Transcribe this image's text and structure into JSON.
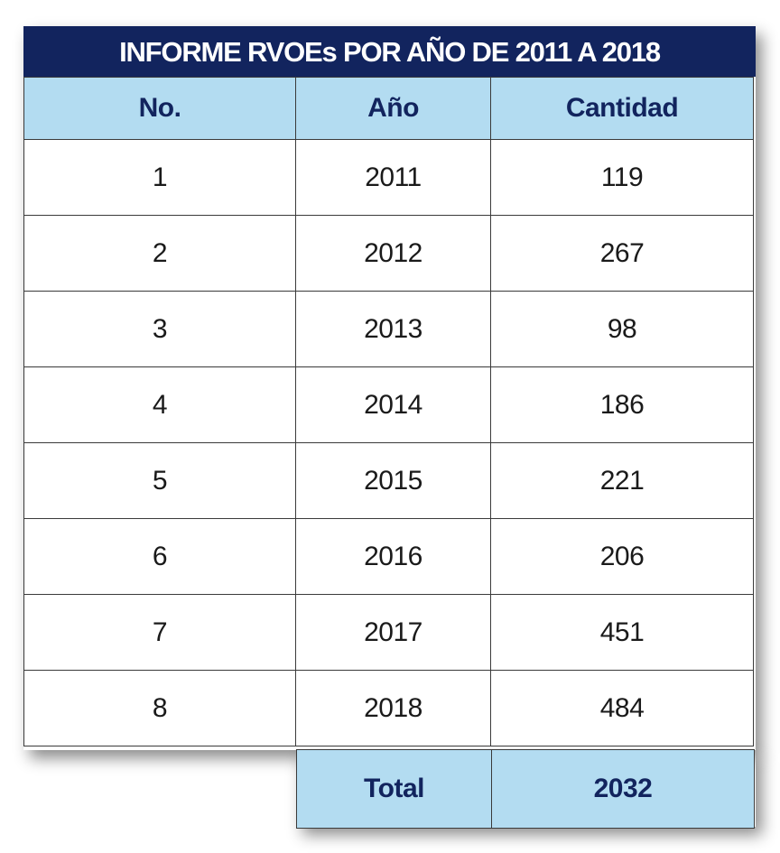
{
  "title": "INFORME RVOEs POR AÑO DE 2011 A 2018",
  "headers": {
    "no": "No.",
    "year": "Año",
    "quantity": "Cantidad"
  },
  "rows": [
    {
      "no": "1",
      "year": "2011",
      "quantity": "119"
    },
    {
      "no": "2",
      "year": "2012",
      "quantity": "267"
    },
    {
      "no": "3",
      "year": "2013",
      "quantity": "98"
    },
    {
      "no": "4",
      "year": "2014",
      "quantity": "186"
    },
    {
      "no": "5",
      "year": "2015",
      "quantity": "221"
    },
    {
      "no": "6",
      "year": "2016",
      "quantity": "206"
    },
    {
      "no": "7",
      "year": "2017",
      "quantity": "451"
    },
    {
      "no": "8",
      "year": "2018",
      "quantity": "484"
    }
  ],
  "total": {
    "label": "Total",
    "value": "2032"
  },
  "colors": {
    "title_bg": "#12245e",
    "header_bg": "#b3dcf1",
    "header_text": "#12245e"
  }
}
